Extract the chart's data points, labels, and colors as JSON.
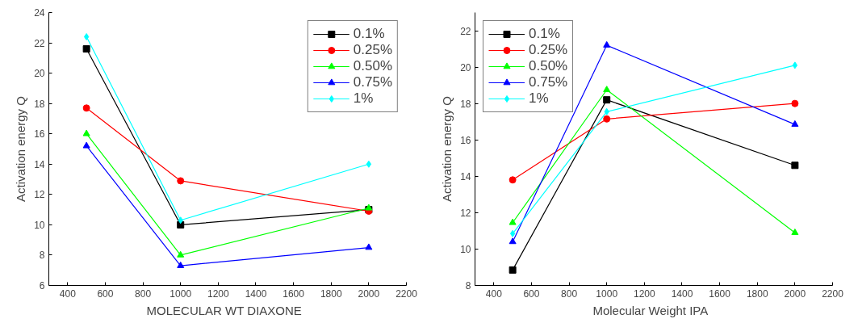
{
  "chart_data": [
    {
      "type": "line",
      "xlabel": "MOLECULAR WT   DIAXONE",
      "ylabel": "Activation energy Q",
      "x": [
        500,
        1000,
        2000
      ],
      "xlim": [
        300,
        2200
      ],
      "xticks": [
        400,
        600,
        800,
        1000,
        1200,
        1400,
        1600,
        1800,
        2000,
        2200
      ],
      "ylim": [
        6,
        24
      ],
      "yticks": [
        6,
        8,
        10,
        12,
        14,
        16,
        18,
        20,
        22,
        24
      ],
      "grid": false,
      "legend": "top right",
      "series": [
        {
          "name": "0.1%",
          "color": "#000000",
          "marker": "square",
          "values": [
            21.6,
            10.0,
            11.0
          ]
        },
        {
          "name": "0.25%",
          "color": "#ff0000",
          "marker": "circle",
          "values": [
            17.7,
            12.9,
            10.9
          ]
        },
        {
          "name": "0.50%",
          "color": "#00ff00",
          "marker": "triangle",
          "values": [
            16.0,
            8.0,
            11.1
          ]
        },
        {
          "name": "0.75%",
          "color": "#0000ff",
          "marker": "triangle",
          "values": [
            15.2,
            7.3,
            8.5
          ]
        },
        {
          "name": "1%",
          "color": "#00ffff",
          "marker": "diamond",
          "values": [
            22.4,
            10.3,
            14.0
          ]
        }
      ]
    },
    {
      "type": "line",
      "xlabel": "Molecular Weight   IPA",
      "ylabel": "Activation energy Q",
      "x": [
        500,
        1000,
        2000
      ],
      "xlim": [
        300,
        2200
      ],
      "xticks": [
        400,
        600,
        800,
        1000,
        1200,
        1400,
        1600,
        1800,
        2000,
        2200
      ],
      "ylim": [
        8,
        23
      ],
      "yticks": [
        8,
        10,
        12,
        14,
        16,
        18,
        20,
        22
      ],
      "grid": false,
      "legend": "top left",
      "series": [
        {
          "name": "0.1%",
          "color": "#000000",
          "marker": "square",
          "values": [
            8.85,
            18.2,
            14.6
          ]
        },
        {
          "name": "0.25%",
          "color": "#ff0000",
          "marker": "circle",
          "values": [
            13.8,
            17.15,
            18.0
          ]
        },
        {
          "name": "0.50%",
          "color": "#00ff00",
          "marker": "triangle",
          "values": [
            11.45,
            18.75,
            10.9
          ]
        },
        {
          "name": "0.75%",
          "color": "#0000ff",
          "marker": "triangle",
          "values": [
            10.4,
            21.2,
            16.85
          ]
        },
        {
          "name": "1%",
          "color": "#00ffff",
          "marker": "diamond",
          "values": [
            10.85,
            17.55,
            20.1
          ]
        }
      ]
    }
  ]
}
